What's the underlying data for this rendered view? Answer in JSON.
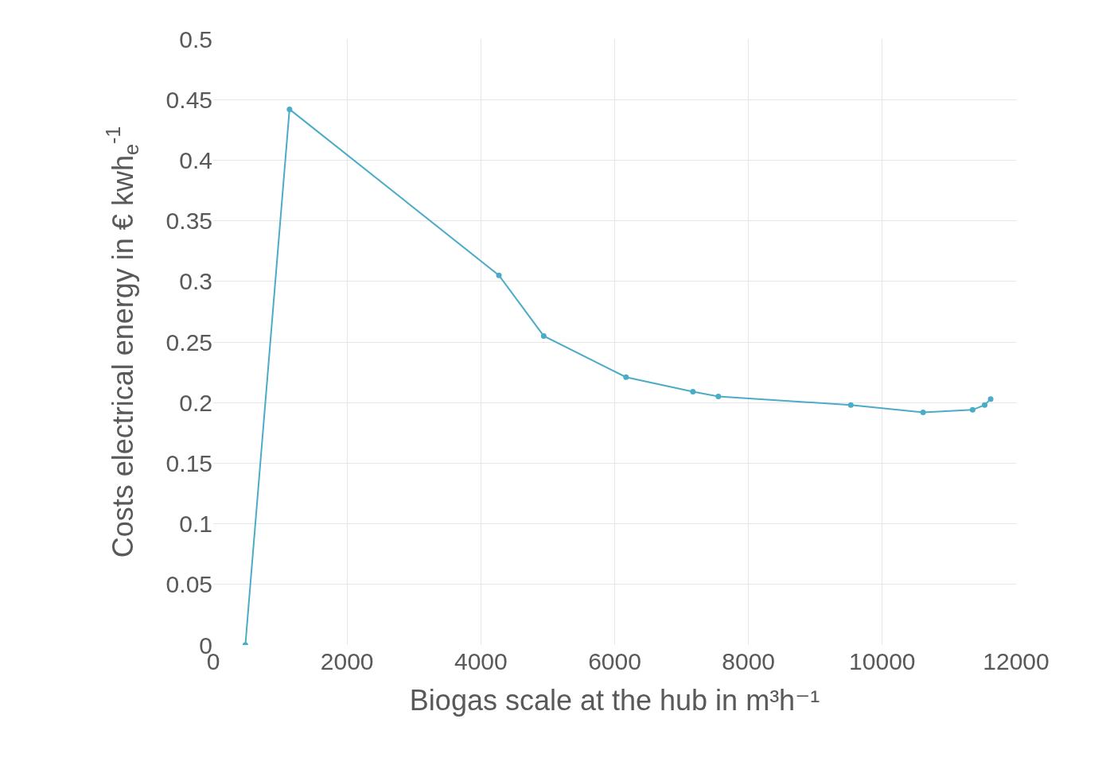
{
  "chart_data": {
    "type": "line",
    "xlabel": "Biogas scale at the hub in m³h⁻¹",
    "ylabel": "Costs electrical energy in € kwh$_{e}$$^{-1}$",
    "x": [
      480,
      1140,
      4270,
      4940,
      6170,
      7170,
      7550,
      9530,
      10610,
      11350,
      11530,
      11620
    ],
    "series": [
      {
        "color": "#4bacc6",
        "values": [
          0,
          0.442,
          0.305,
          0.255,
          0.221,
          0.209,
          0.205,
          0.198,
          0.192,
          0.194,
          0.198,
          0.203
        ]
      }
    ],
    "xlim": [
      0,
      12000
    ],
    "xticks": [
      0,
      2000,
      4000,
      6000,
      8000,
      10000,
      12000
    ],
    "ylim": [
      0,
      0.5
    ],
    "yticks": [
      0,
      0.05,
      0.1,
      0.15,
      0.2,
      0.25,
      0.3,
      0.35,
      0.4,
      0.45,
      0.5
    ],
    "grid": true,
    "marker": "circle",
    "line_style": "solid"
  }
}
